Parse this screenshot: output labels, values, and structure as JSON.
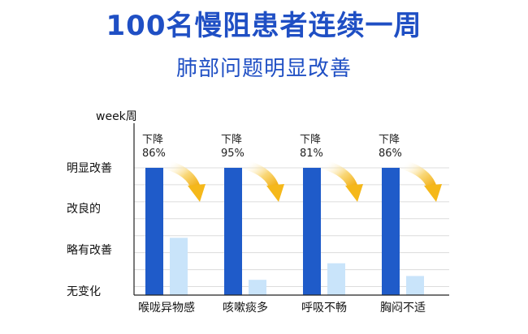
{
  "header": {
    "title": "100名慢阻患者连续一周",
    "subtitle": "肺部问题明显改善"
  },
  "chart_data": {
    "type": "bar",
    "y_axis_title": "week周",
    "y_levels": [
      "明显改善",
      "改良的",
      "略有改善",
      "无变化"
    ],
    "categories": [
      "喉咙异物感",
      "咳嗽痰多",
      "呼吸不畅",
      "胸闷不适"
    ],
    "series": [
      {
        "values": [
          100,
          100,
          100,
          100
        ]
      },
      {
        "values": [
          45,
          12,
          25,
          15
        ]
      }
    ],
    "annotations": [
      {
        "label": "下降",
        "value": "86%"
      },
      {
        "label": "下降",
        "value": "95%"
      },
      {
        "label": "下降",
        "value": "81%"
      },
      {
        "label": "下降",
        "value": "86%"
      }
    ],
    "ylim": [
      0,
      100
    ],
    "grid": true,
    "colors": {
      "primary": "#1f5bc9",
      "secondary": "#c9e4fa",
      "arrow": "#f5b81a",
      "title": "#1f4fc4"
    }
  }
}
